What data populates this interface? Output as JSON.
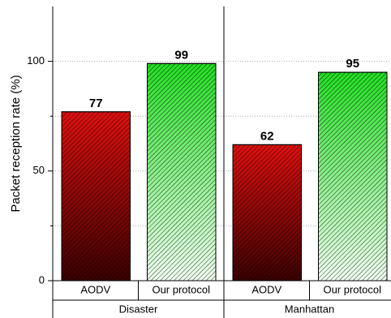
{
  "chart_data": {
    "type": "bar",
    "y_label": "Packet reception rate (%)",
    "categories": [
      "Disaster",
      "Manhattan"
    ],
    "series": [
      {
        "name": "AODV",
        "color": "#e01010",
        "color2": "#3a0000",
        "values": [
          77,
          62
        ]
      },
      {
        "name": "Our protocol",
        "color": "#22dd22",
        "color2": "#f0fff0",
        "values": [
          99,
          95
        ]
      }
    ],
    "ylim": [
      0,
      125
    ],
    "yticks": [
      0,
      50,
      100
    ],
    "minor_yticks": [
      25,
      75
    ],
    "grid": true
  }
}
